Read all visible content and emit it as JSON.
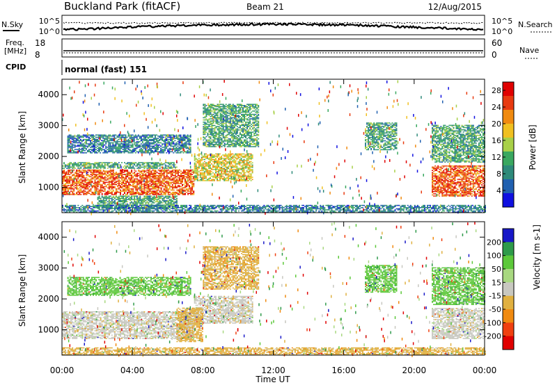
{
  "header": {
    "station": "Buckland Park (fitACF)",
    "beam": "Beam 21",
    "date": "12/Aug/2015"
  },
  "top_panels": {
    "nsky_label": "N.Sky",
    "nsearch_label": "N.Search",
    "noise_ticks": [
      "10^5",
      "10^0"
    ],
    "freq_label_line1": "Freq.",
    "freq_label_line2": "[MHz]",
    "freq_ticks": [
      "18",
      "8"
    ],
    "nave_label": "Nave",
    "nave_ticks": [
      "60",
      "0"
    ],
    "cpid_label": "CPID",
    "cpid_text": "normal (fast) 151"
  },
  "chart_data": [
    {
      "type": "heatmap",
      "name": "power",
      "xlabel": "Time UT",
      "ylabel": "Slant Range [km]",
      "xlim": [
        "00:00",
        "24:00"
      ],
      "ylim": [
        180,
        4500
      ],
      "yticks": [
        1000,
        2000,
        3000,
        4000
      ],
      "colorbar_label": "Power [dB]",
      "colorbar_ticks": [
        4,
        8,
        12,
        16,
        20,
        24,
        28
      ],
      "colorbar_range": [
        0,
        30
      ],
      "colorbar_colors": [
        "#1010e0",
        "#2060b0",
        "#2e8a7a",
        "#3aa860",
        "#a8d048",
        "#f0c020",
        "#f08a10",
        "#e83a10",
        "#e00000"
      ],
      "regions": [
        {
          "t0": 0.0,
          "t1": 7.5,
          "r0": 750,
          "r1": 1550,
          "level": 28
        },
        {
          "t0": 7.5,
          "t1": 10.8,
          "r0": 1200,
          "r1": 2100,
          "level": 20
        },
        {
          "t0": 0.0,
          "t1": 6.5,
          "r0": 1600,
          "r1": 1800,
          "level": 12
        },
        {
          "t0": 0.3,
          "t1": 7.3,
          "r0": 2100,
          "r1": 2700,
          "level": 8
        },
        {
          "t0": 8.0,
          "t1": 11.2,
          "r0": 2300,
          "r1": 3700,
          "level": 10
        },
        {
          "t0": 2.0,
          "t1": 6.5,
          "r0": 300,
          "r1": 700,
          "level": 12
        },
        {
          "t0": 0.0,
          "t1": 24.0,
          "r0": 180,
          "r1": 420,
          "level": 8
        },
        {
          "t0": 17.2,
          "t1": 19.0,
          "r0": 2200,
          "r1": 3100,
          "level": 10
        },
        {
          "t0": 21.0,
          "t1": 24.0,
          "r0": 700,
          "r1": 1700,
          "level": 28
        },
        {
          "t0": 21.0,
          "t1": 24.0,
          "r0": 1800,
          "r1": 3000,
          "level": 10
        }
      ]
    },
    {
      "type": "heatmap",
      "name": "velocity",
      "xlabel": "Time UT",
      "ylabel": "Slant Range [km]",
      "xlim": [
        "00:00",
        "24:00"
      ],
      "ylim": [
        180,
        4500
      ],
      "yticks": [
        1000,
        2000,
        3000,
        4000
      ],
      "xticks": [
        "00:00",
        "04:00",
        "08:00",
        "12:00",
        "16:00",
        "20:00",
        "00:00"
      ],
      "colorbar_label": "Velocity [m s-1]",
      "colorbar_ticks": [
        200,
        100,
        50,
        15,
        -15,
        -50,
        -100,
        -200
      ],
      "colorbar_colors": [
        "#1818c8",
        "#2e9a4a",
        "#5cc83a",
        "#a8d880",
        "#c8c8c0",
        "#e0b040",
        "#f08a10",
        "#f04010",
        "#e00000"
      ],
      "regions": [
        {
          "t0": 0.0,
          "t1": 7.5,
          "r0": 700,
          "r1": 1600,
          "class": 0
        },
        {
          "t0": 7.5,
          "t1": 10.8,
          "r0": 1200,
          "r1": 2100,
          "class": 0
        },
        {
          "t0": 6.5,
          "t1": 8.0,
          "r0": 600,
          "r1": 1700,
          "class": -50
        },
        {
          "t0": 0.3,
          "t1": 7.3,
          "r0": 2100,
          "r1": 2700,
          "class": 50
        },
        {
          "t0": 8.0,
          "t1": 11.2,
          "r0": 2300,
          "r1": 3700,
          "class": -50
        },
        {
          "t0": 0.0,
          "t1": 24.0,
          "r0": 180,
          "r1": 420,
          "class": -50
        },
        {
          "t0": 17.2,
          "t1": 19.0,
          "r0": 2200,
          "r1": 3100,
          "class": 50
        },
        {
          "t0": 21.0,
          "t1": 24.0,
          "r0": 700,
          "r1": 1700,
          "class": 0
        },
        {
          "t0": 21.0,
          "t1": 24.0,
          "r0": 1800,
          "r1": 3000,
          "class": 50
        }
      ]
    }
  ]
}
